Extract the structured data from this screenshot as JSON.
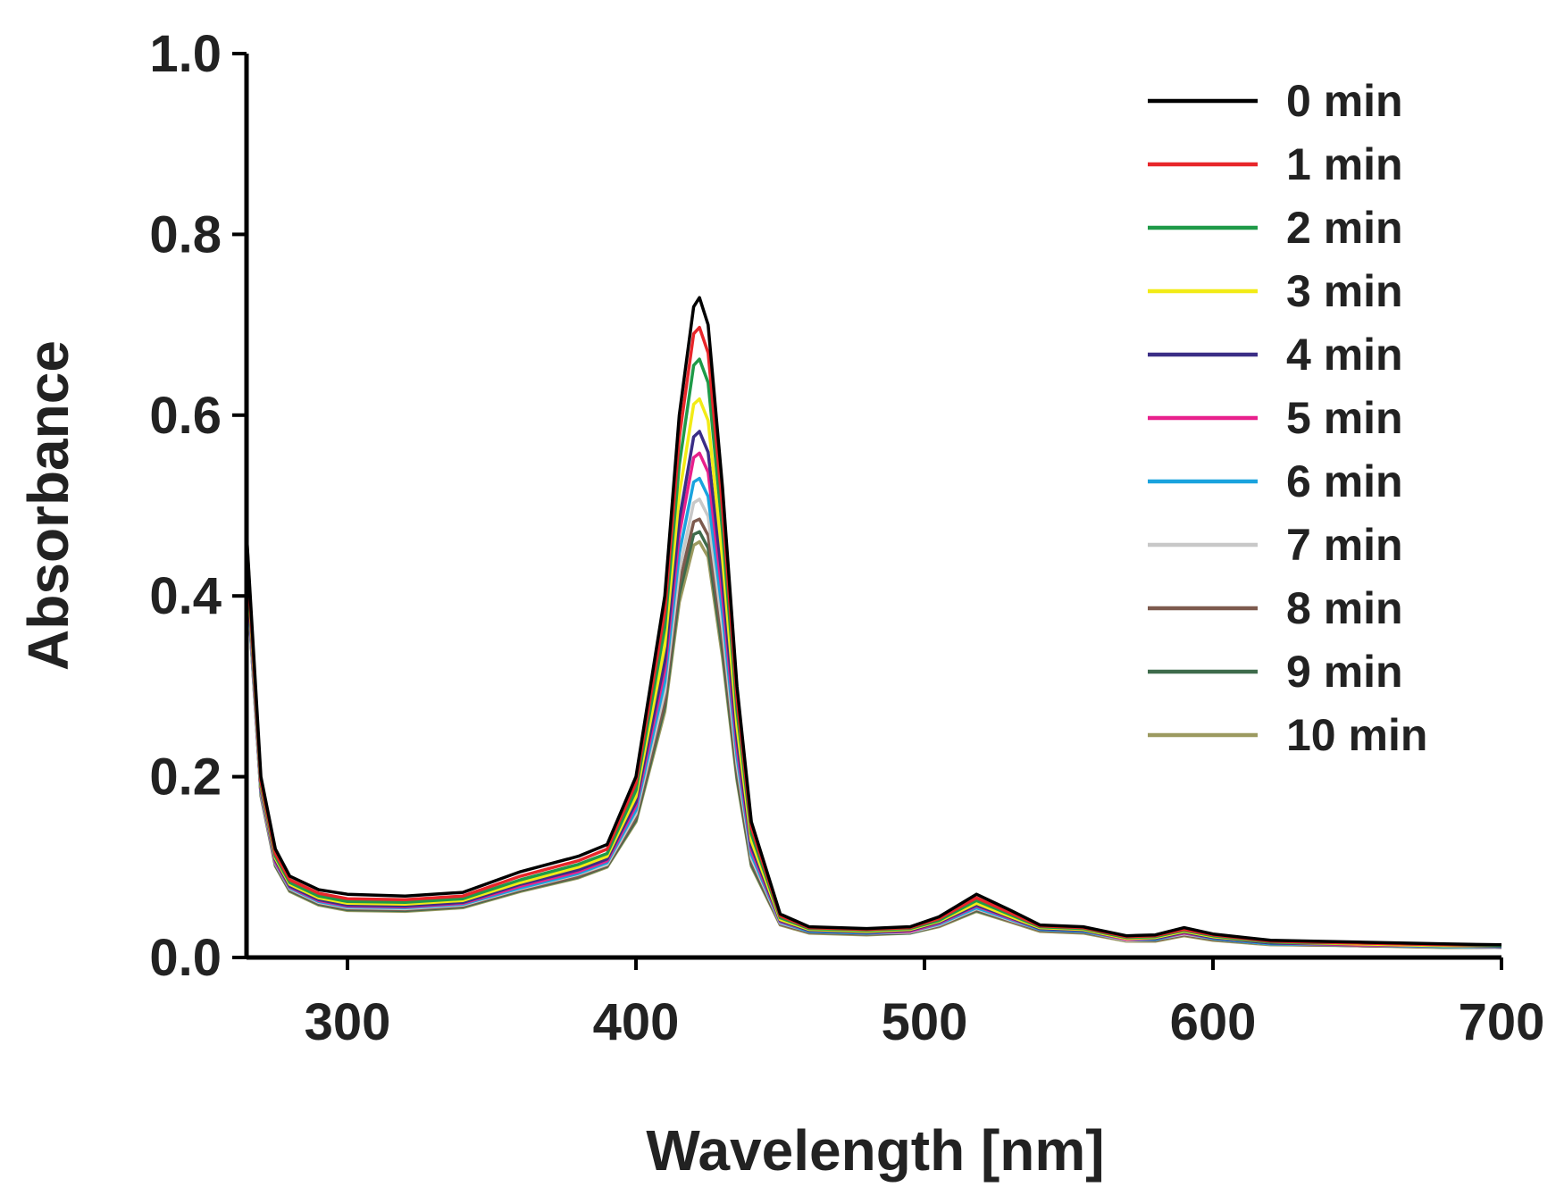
{
  "chart_data": {
    "type": "line",
    "xlabel": "Wavelength [nm]",
    "ylabel": "Absorbance",
    "xlim": [
      265,
      700
    ],
    "ylim": [
      0.0,
      1.0
    ],
    "x_ticks": [
      300,
      400,
      500,
      600,
      700
    ],
    "x_tick_labels": [
      "300",
      "400",
      "500",
      "600",
      "700"
    ],
    "y_ticks": [
      0.0,
      0.2,
      0.4,
      0.6,
      0.8,
      1.0
    ],
    "y_tick_labels": [
      "0.0",
      "0.2",
      "0.4",
      "0.6",
      "0.8",
      "1.0"
    ],
    "grid": false,
    "legend_position": "top-right",
    "x": [
      265,
      270,
      275,
      280,
      290,
      300,
      320,
      340,
      360,
      380,
      390,
      400,
      410,
      415,
      420,
      422,
      425,
      430,
      435,
      440,
      450,
      460,
      480,
      495,
      505,
      518,
      530,
      540,
      555,
      570,
      580,
      590,
      600,
      620,
      650,
      680,
      700
    ],
    "series": [
      {
        "name": "0 min",
        "color": "#000000",
        "values": [
          0.47,
          0.2,
          0.12,
          0.09,
          0.075,
          0.07,
          0.068,
          0.072,
          0.095,
          0.112,
          0.125,
          0.2,
          0.4,
          0.6,
          0.72,
          0.73,
          0.7,
          0.52,
          0.3,
          0.15,
          0.048,
          0.034,
          0.032,
          0.034,
          0.045,
          0.07,
          0.052,
          0.036,
          0.034,
          0.024,
          0.025,
          0.033,
          0.026,
          0.019,
          0.017,
          0.015,
          0.014
        ]
      },
      {
        "name": "1 min",
        "color": "#E8262A",
        "values": [
          0.46,
          0.195,
          0.115,
          0.086,
          0.071,
          0.065,
          0.064,
          0.068,
          0.09,
          0.107,
          0.12,
          0.193,
          0.383,
          0.575,
          0.69,
          0.697,
          0.669,
          0.497,
          0.287,
          0.144,
          0.046,
          0.033,
          0.031,
          0.033,
          0.043,
          0.066,
          0.049,
          0.035,
          0.033,
          0.023,
          0.024,
          0.031,
          0.025,
          0.018,
          0.016,
          0.014,
          0.014
        ]
      },
      {
        "name": "2 min",
        "color": "#1F9A48",
        "values": [
          0.455,
          0.192,
          0.112,
          0.083,
          0.068,
          0.062,
          0.061,
          0.065,
          0.086,
          0.103,
          0.115,
          0.185,
          0.365,
          0.545,
          0.655,
          0.662,
          0.636,
          0.472,
          0.273,
          0.137,
          0.044,
          0.032,
          0.03,
          0.032,
          0.041,
          0.063,
          0.047,
          0.034,
          0.032,
          0.022,
          0.023,
          0.03,
          0.024,
          0.017,
          0.016,
          0.014,
          0.013
        ]
      },
      {
        "name": "3 min",
        "color": "#F2EB16",
        "values": [
          0.45,
          0.19,
          0.11,
          0.081,
          0.066,
          0.06,
          0.059,
          0.063,
          0.083,
          0.1,
          0.112,
          0.178,
          0.345,
          0.512,
          0.612,
          0.618,
          0.594,
          0.441,
          0.256,
          0.129,
          0.042,
          0.031,
          0.029,
          0.031,
          0.04,
          0.06,
          0.045,
          0.033,
          0.031,
          0.021,
          0.022,
          0.029,
          0.023,
          0.017,
          0.015,
          0.013,
          0.013
        ]
      },
      {
        "name": "4 min",
        "color": "#3B2E86",
        "values": [
          0.445,
          0.188,
          0.108,
          0.079,
          0.064,
          0.058,
          0.057,
          0.061,
          0.081,
          0.097,
          0.109,
          0.172,
          0.328,
          0.484,
          0.576,
          0.582,
          0.559,
          0.416,
          0.242,
          0.123,
          0.041,
          0.03,
          0.028,
          0.03,
          0.039,
          0.058,
          0.044,
          0.032,
          0.03,
          0.021,
          0.021,
          0.028,
          0.022,
          0.016,
          0.015,
          0.013,
          0.012
        ]
      },
      {
        "name": "5 min",
        "color": "#E8208C",
        "values": [
          0.44,
          0.186,
          0.106,
          0.078,
          0.063,
          0.057,
          0.056,
          0.06,
          0.079,
          0.095,
          0.107,
          0.168,
          0.318,
          0.468,
          0.553,
          0.558,
          0.537,
          0.4,
          0.233,
          0.119,
          0.04,
          0.03,
          0.028,
          0.029,
          0.038,
          0.057,
          0.043,
          0.032,
          0.03,
          0.02,
          0.021,
          0.027,
          0.022,
          0.016,
          0.014,
          0.013,
          0.012
        ]
      },
      {
        "name": "6 min",
        "color": "#1AA3DE",
        "values": [
          0.435,
          0.184,
          0.105,
          0.077,
          0.062,
          0.056,
          0.055,
          0.059,
          0.077,
          0.093,
          0.105,
          0.163,
          0.305,
          0.447,
          0.526,
          0.53,
          0.51,
          0.381,
          0.223,
          0.114,
          0.039,
          0.029,
          0.027,
          0.029,
          0.037,
          0.055,
          0.042,
          0.031,
          0.029,
          0.02,
          0.02,
          0.027,
          0.021,
          0.015,
          0.014,
          0.012,
          0.012
        ]
      },
      {
        "name": "7 min",
        "color": "#C8C8C8",
        "values": [
          0.43,
          0.182,
          0.104,
          0.076,
          0.061,
          0.055,
          0.054,
          0.058,
          0.076,
          0.092,
          0.103,
          0.159,
          0.294,
          0.428,
          0.503,
          0.507,
          0.488,
          0.365,
          0.214,
          0.11,
          0.038,
          0.029,
          0.027,
          0.028,
          0.036,
          0.054,
          0.041,
          0.031,
          0.029,
          0.019,
          0.02,
          0.026,
          0.021,
          0.015,
          0.014,
          0.012,
          0.011
        ]
      },
      {
        "name": "8 min",
        "color": "#7D5A4E",
        "values": [
          0.428,
          0.181,
          0.103,
          0.075,
          0.06,
          0.054,
          0.053,
          0.057,
          0.075,
          0.09,
          0.102,
          0.155,
          0.284,
          0.413,
          0.482,
          0.485,
          0.467,
          0.35,
          0.206,
          0.106,
          0.037,
          0.028,
          0.026,
          0.028,
          0.035,
          0.053,
          0.04,
          0.03,
          0.028,
          0.019,
          0.019,
          0.025,
          0.02,
          0.015,
          0.013,
          0.012,
          0.011
        ]
      },
      {
        "name": "9 min",
        "color": "#3E6B4B",
        "values": [
          0.426,
          0.18,
          0.102,
          0.074,
          0.059,
          0.053,
          0.052,
          0.056,
          0.074,
          0.089,
          0.101,
          0.152,
          0.278,
          0.402,
          0.468,
          0.471,
          0.453,
          0.34,
          0.2,
          0.103,
          0.037,
          0.028,
          0.026,
          0.027,
          0.035,
          0.052,
          0.04,
          0.03,
          0.028,
          0.019,
          0.019,
          0.025,
          0.02,
          0.015,
          0.013,
          0.012,
          0.011
        ]
      },
      {
        "name": "10 min",
        "color": "#9C9A60",
        "values": [
          0.47,
          0.179,
          0.101,
          0.073,
          0.058,
          0.052,
          0.051,
          0.055,
          0.073,
          0.088,
          0.1,
          0.15,
          0.272,
          0.393,
          0.456,
          0.46,
          0.443,
          0.332,
          0.196,
          0.101,
          0.036,
          0.027,
          0.025,
          0.027,
          0.034,
          0.051,
          0.039,
          0.029,
          0.027,
          0.018,
          0.018,
          0.024,
          0.019,
          0.014,
          0.013,
          0.011,
          0.011
        ]
      }
    ]
  }
}
